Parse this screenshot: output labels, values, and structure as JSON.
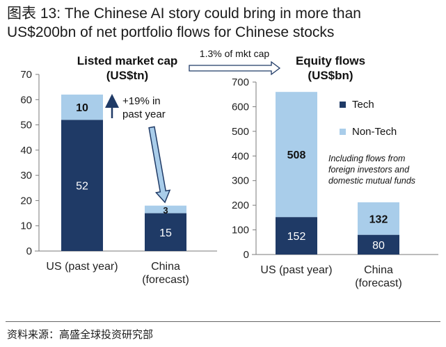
{
  "title_line1": "图表 13: The Chinese AI story could bring in more than",
  "title_line2": "US$200bn of net portfolio flows for Chinese stocks",
  "source": "资料来源：高盛全球投资研究部",
  "colors": {
    "tech": "#1f3a66",
    "non_tech": "#a9cdea"
  },
  "connector_label": "1.3% of mkt cap",
  "chart_data": [
    {
      "type": "bar",
      "stacked": true,
      "title": "Listed market cap",
      "title_units": "(US$tn)",
      "categories": [
        "US (past year)",
        "China\n(forecast)"
      ],
      "series": [
        {
          "key": "tech",
          "values": [
            52,
            15
          ]
        },
        {
          "key": "non_tech",
          "values": [
            10,
            3
          ]
        }
      ],
      "ylim": [
        0,
        70
      ],
      "yticks": [
        0,
        10,
        20,
        30,
        40,
        50,
        60,
        70
      ],
      "annotation": "+19% in\npast year"
    },
    {
      "type": "bar",
      "stacked": true,
      "title": "Equity flows",
      "title_units": "(US$bn)",
      "categories": [
        "US (past year)",
        "China\n(forecast)"
      ],
      "series": [
        {
          "name": "Tech",
          "key": "tech",
          "values": [
            152,
            80
          ]
        },
        {
          "name": "Non-Tech",
          "key": "non_tech",
          "values": [
            508,
            132
          ]
        }
      ],
      "ylim": [
        0,
        700
      ],
      "yticks": [
        0,
        100,
        200,
        300,
        400,
        500,
        600,
        700
      ],
      "legend": [
        "Tech",
        "Non-Tech"
      ],
      "note": "Including flows from\nforeign investors and\ndomestic mutual funds"
    }
  ]
}
